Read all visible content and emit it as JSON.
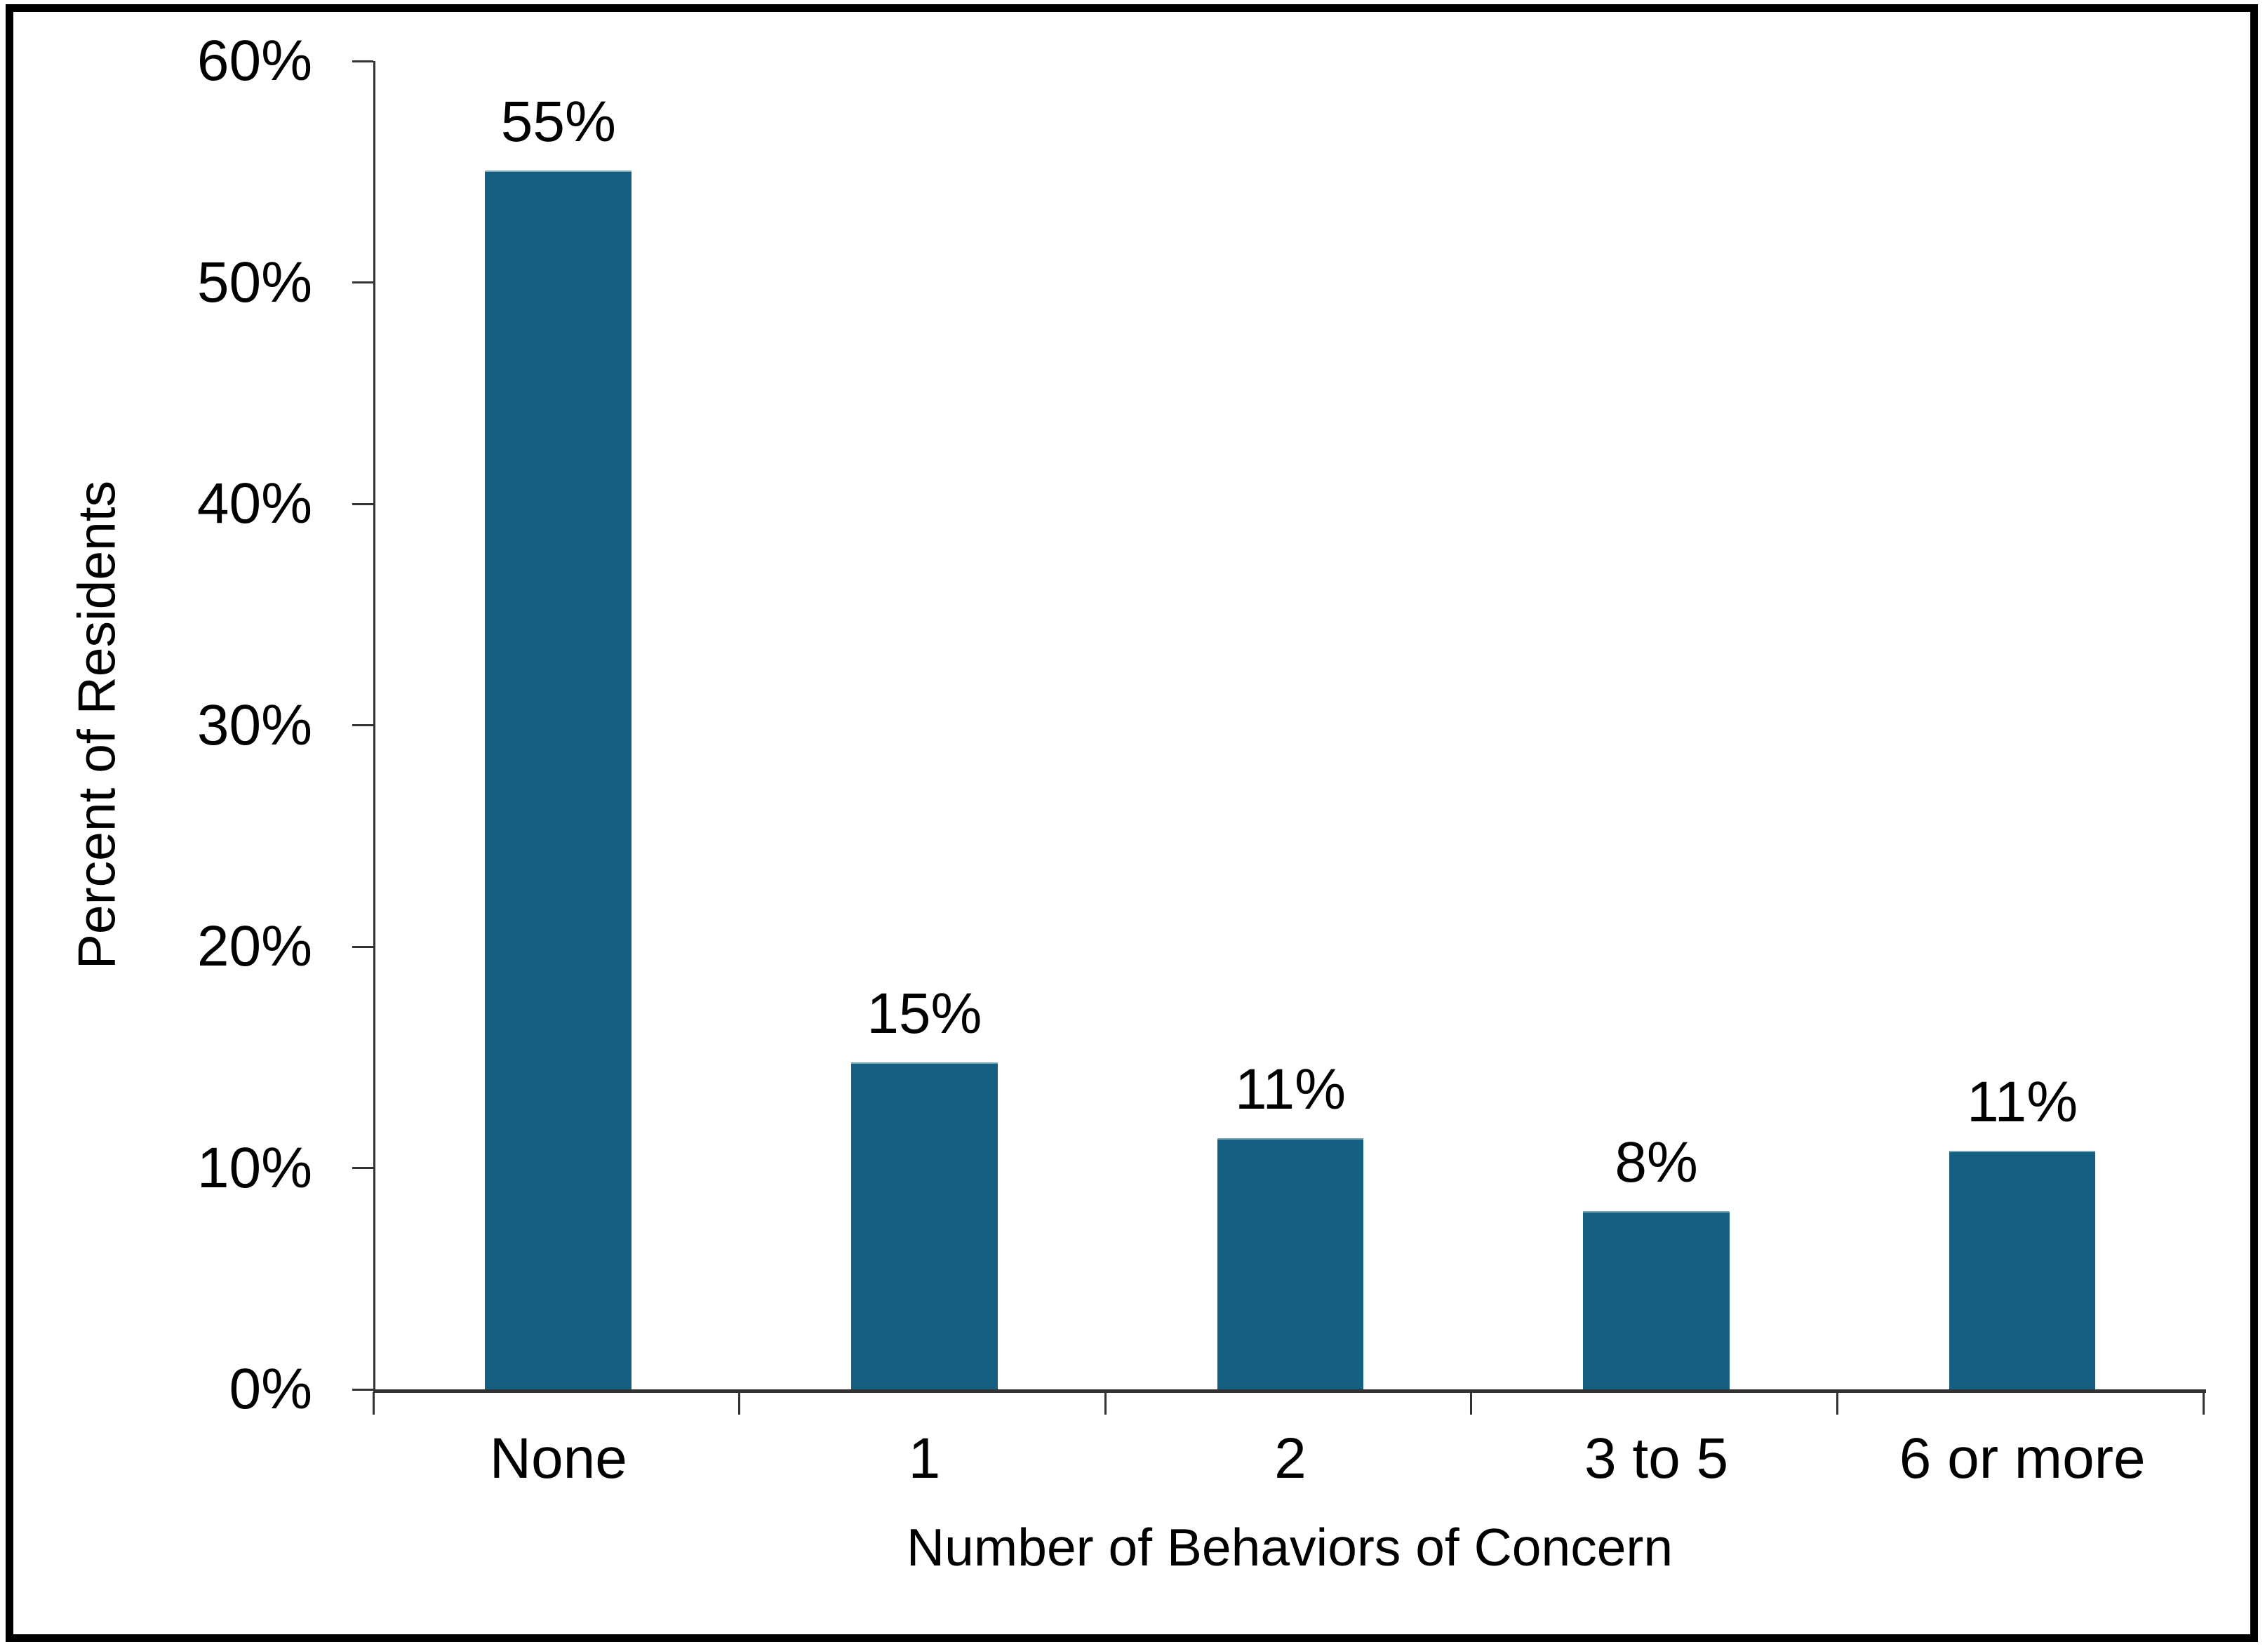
{
  "chart_data": {
    "type": "bar",
    "title": "",
    "categories": [
      "None",
      "1",
      "2",
      "3 to 5",
      "6 or more"
    ],
    "values": [
      55,
      14.7,
      11.3,
      8,
      10.7
    ],
    "data_labels": [
      "55%",
      "15%",
      "11%",
      "8%",
      "11%"
    ],
    "xlabel": "Number of Behaviors of Concern",
    "ylabel": "Percent of Residents",
    "ylim": [
      0,
      60
    ],
    "ytick_labels": [
      "0%",
      "10%",
      "20%",
      "30%",
      "40%",
      "50%",
      "60%"
    ],
    "grid": false,
    "legend": "none",
    "colors": {
      "bar": "#156082",
      "axis": "#333333",
      "text": "#000000",
      "frame": "#000000",
      "background": "#ffffff"
    }
  }
}
